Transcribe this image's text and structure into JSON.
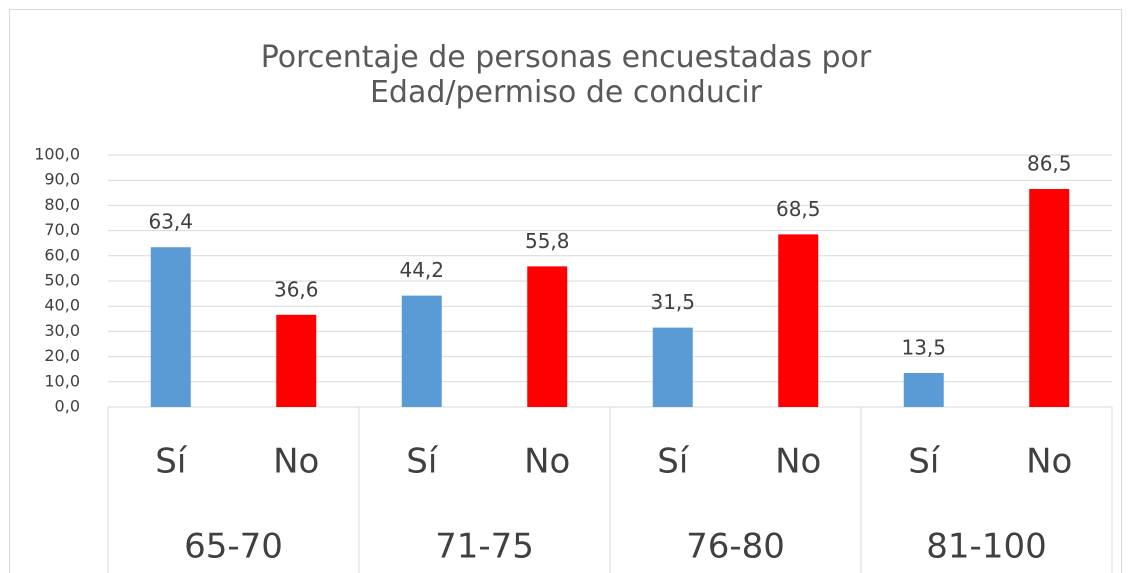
{
  "chart_data": {
    "type": "bar",
    "title": "Porcentaje de personas encuestadas por Edad/permiso de conducir",
    "categories": [
      "Sí",
      "No",
      "Sí",
      "No",
      "Sí",
      "No",
      "Sí",
      "No"
    ],
    "groups": [
      "65-70",
      "71-75",
      "76-80",
      "81-100"
    ],
    "values": [
      63.4,
      36.6,
      44.2,
      55.8,
      31.5,
      68.5,
      13.5,
      86.5
    ],
    "value_labels": [
      "63,4",
      "36,6",
      "44,2",
      "55,8",
      "31,5",
      "68,5",
      "13,5",
      "86,5"
    ],
    "colors": [
      "#5b9bd5",
      "#ff0000",
      "#5b9bd5",
      "#ff0000",
      "#5b9bd5",
      "#ff0000",
      "#5b9bd5",
      "#ff0000"
    ],
    "ylim": [
      0,
      100
    ],
    "yticks": [
      {
        "value": 0,
        "label": "0,0"
      },
      {
        "value": 10,
        "label": "10,0"
      },
      {
        "value": 20,
        "label": "20,0"
      },
      {
        "value": 30,
        "label": "30,0"
      },
      {
        "value": 40,
        "label": "40,0"
      },
      {
        "value": 50,
        "label": "50,0"
      },
      {
        "value": 60,
        "label": "60,0"
      },
      {
        "value": 70,
        "label": "70,0"
      },
      {
        "value": 80,
        "label": "80,0"
      },
      {
        "value": 90,
        "label": "90,0"
      },
      {
        "value": 100,
        "label": "100,0"
      }
    ],
    "grid": true
  }
}
